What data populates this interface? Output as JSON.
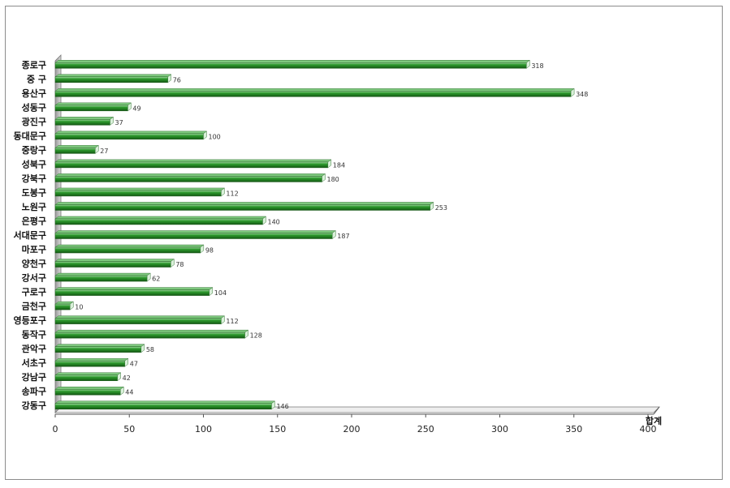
{
  "chart_data": {
    "type": "bar",
    "orientation": "horizontal",
    "title": "",
    "xlabel": "",
    "ylabel": "",
    "categories": [
      "종로구",
      "중 구",
      "용산구",
      "성동구",
      "광진구",
      "동대문구",
      "중랑구",
      "성북구",
      "강북구",
      "도봉구",
      "노원구",
      "은평구",
      "서대문구",
      "마포구",
      "양천구",
      "강서구",
      "구로구",
      "금천구",
      "영등포구",
      "동작구",
      "관악구",
      "서초구",
      "강남구",
      "송파구",
      "강동구"
    ],
    "series": [
      {
        "name": "합계",
        "values": [
          318,
          76,
          348,
          49,
          37,
          100,
          27,
          184,
          180,
          112,
          253,
          140,
          187,
          98,
          78,
          62,
          104,
          10,
          112,
          128,
          58,
          47,
          42,
          44,
          146
        ]
      }
    ],
    "xlim": [
      0,
      400
    ],
    "xticks": [
      0,
      50,
      100,
      150,
      200,
      250,
      300,
      350,
      400
    ],
    "grid": false,
    "data_labels": true,
    "legend_position": "bottom-right",
    "colors": {
      "bar": "#2e8b2e",
      "bar_dark": "#1a5c1a",
      "bar_light": "#8fd18f",
      "axis": "#555555",
      "wall": "#bcbcbc"
    }
  }
}
